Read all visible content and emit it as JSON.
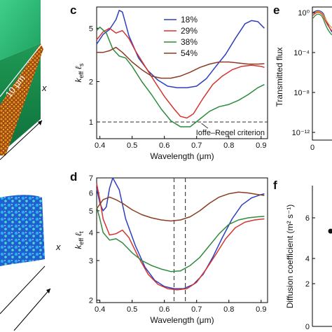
{
  "panels": {
    "c": "c",
    "d": "d",
    "e": "e",
    "f": "f"
  },
  "panel_a": {
    "scale_label": "10 μm",
    "axis_label": "x"
  },
  "panel_b": {
    "axis_label": "x"
  },
  "panel_e": {
    "ylabel": "Transmitted flux",
    "yticks": [
      "10⁰",
      "10⁻⁴",
      "10⁻⁸",
      "10⁻¹²"
    ],
    "xticks": [
      "0"
    ]
  },
  "panel_f": {
    "ylabel": "Diffusion coefficient (m² s⁻¹)",
    "yticks": [
      "0",
      "2",
      "4",
      "6"
    ]
  },
  "chart_data": [
    {
      "id": "c",
      "type": "line",
      "xlabel": "Wavelength (μm)",
      "ylabel_parts": [
        "k",
        "eff",
        "ℓ",
        "s"
      ],
      "yscale": "log",
      "xlim": [
        0.39,
        0.92
      ],
      "ylim": [
        0.75,
        7.2
      ],
      "xticks": [
        "0.4",
        "0.5",
        "0.6",
        "0.7",
        "0.8",
        "0.9"
      ],
      "xtick_values": [
        0.4,
        0.5,
        0.6,
        0.7,
        0.8,
        0.9
      ],
      "yticks": [
        "1",
        "2",
        "5"
      ],
      "ytick_values": [
        1,
        2,
        5
      ],
      "legend_position": "top-center",
      "reference_line": {
        "y": 1,
        "label": "Ioffe–Regel criterion"
      },
      "series": [
        {
          "name": "18%",
          "color": "#2b3fbf",
          "points": [
            [
              0.39,
              3.8
            ],
            [
              0.41,
              4.5
            ],
            [
              0.43,
              4.9
            ],
            [
              0.45,
              5.8
            ],
            [
              0.46,
              6.8
            ],
            [
              0.47,
              6.6
            ],
            [
              0.49,
              4.4
            ],
            [
              0.52,
              3.0
            ],
            [
              0.55,
              2.4
            ],
            [
              0.58,
              2.05
            ],
            [
              0.61,
              1.85
            ],
            [
              0.64,
              1.8
            ],
            [
              0.67,
              1.8
            ],
            [
              0.7,
              1.85
            ],
            [
              0.73,
              2.1
            ],
            [
              0.76,
              2.6
            ],
            [
              0.79,
              3.2
            ],
            [
              0.82,
              4.2
            ],
            [
              0.85,
              5.4
            ],
            [
              0.87,
              5.7
            ],
            [
              0.89,
              5.6
            ],
            [
              0.91,
              5.0
            ]
          ]
        },
        {
          "name": "29%",
          "color": "#d6332f",
          "points": [
            [
              0.39,
              4.1
            ],
            [
              0.41,
              4.7
            ],
            [
              0.43,
              5.0
            ],
            [
              0.45,
              4.6
            ],
            [
              0.47,
              4.8
            ],
            [
              0.49,
              4.2
            ],
            [
              0.51,
              3.4
            ],
            [
              0.54,
              2.6
            ],
            [
              0.57,
              2.0
            ],
            [
              0.6,
              1.55
            ],
            [
              0.63,
              1.25
            ],
            [
              0.65,
              1.1
            ],
            [
              0.67,
              1.07
            ],
            [
              0.69,
              1.15
            ],
            [
              0.72,
              1.5
            ],
            [
              0.75,
              1.9
            ],
            [
              0.78,
              2.2
            ],
            [
              0.81,
              2.45
            ],
            [
              0.84,
              2.6
            ],
            [
              0.87,
              2.65
            ],
            [
              0.9,
              2.6
            ],
            [
              0.91,
              2.55
            ]
          ]
        },
        {
          "name": "38%",
          "color": "#2e8b3d",
          "points": [
            [
              0.39,
              4.8
            ],
            [
              0.4,
              5.1
            ],
            [
              0.42,
              4.6
            ],
            [
              0.44,
              3.5
            ],
            [
              0.46,
              3.1
            ],
            [
              0.48,
              3.0
            ],
            [
              0.5,
              2.6
            ],
            [
              0.53,
              2.0
            ],
            [
              0.56,
              1.6
            ],
            [
              0.59,
              1.25
            ],
            [
              0.62,
              1.02
            ],
            [
              0.65,
              0.92
            ],
            [
              0.68,
              0.92
            ],
            [
              0.71,
              1.05
            ],
            [
              0.74,
              1.2
            ],
            [
              0.77,
              1.3
            ],
            [
              0.8,
              1.35
            ],
            [
              0.83,
              1.45
            ],
            [
              0.86,
              1.6
            ],
            [
              0.89,
              1.8
            ],
            [
              0.91,
              1.9
            ]
          ]
        },
        {
          "name": "54%",
          "color": "#8a3d22",
          "points": [
            [
              0.39,
              3.3
            ],
            [
              0.41,
              3.3
            ],
            [
              0.43,
              3.4
            ],
            [
              0.45,
              3.6
            ],
            [
              0.47,
              3.3
            ],
            [
              0.5,
              2.8
            ],
            [
              0.53,
              2.45
            ],
            [
              0.56,
              2.2
            ],
            [
              0.59,
              2.12
            ],
            [
              0.62,
              2.12
            ],
            [
              0.65,
              2.2
            ],
            [
              0.68,
              2.35
            ],
            [
              0.71,
              2.55
            ],
            [
              0.74,
              2.7
            ],
            [
              0.77,
              2.8
            ],
            [
              0.8,
              2.8
            ],
            [
              0.83,
              2.75
            ],
            [
              0.86,
              2.7
            ],
            [
              0.89,
              2.7
            ],
            [
              0.91,
              2.72
            ]
          ]
        }
      ]
    },
    {
      "id": "d",
      "type": "line",
      "xlabel": "Wavelength (μm)",
      "ylabel_parts": [
        "k",
        "eff",
        "ℓ",
        "t"
      ],
      "yscale": "log",
      "xlim": [
        0.39,
        0.92
      ],
      "ylim": [
        1.95,
        7.0
      ],
      "xticks": [
        "0.4",
        "0.5",
        "0.6",
        "0.7",
        "0.8",
        "0.9"
      ],
      "xtick_values": [
        0.4,
        0.5,
        0.6,
        0.7,
        0.8,
        0.9
      ],
      "yticks": [
        "2",
        "3",
        "4",
        "5",
        "6",
        "7"
      ],
      "ytick_values": [
        2,
        3,
        4,
        5,
        6,
        7
      ],
      "vlines": [
        0.63,
        0.665
      ],
      "series": [
        {
          "name": "18%",
          "color": "#2b3fbf",
          "points": [
            [
              0.39,
              6.3
            ],
            [
              0.4,
              5.4
            ],
            [
              0.41,
              5.0
            ],
            [
              0.42,
              5.2
            ],
            [
              0.43,
              6.3
            ],
            [
              0.44,
              7.0
            ],
            [
              0.46,
              6.2
            ],
            [
              0.48,
              4.6
            ],
            [
              0.51,
              3.5
            ],
            [
              0.54,
              2.8
            ],
            [
              0.57,
              2.45
            ],
            [
              0.6,
              2.3
            ],
            [
              0.63,
              2.25
            ],
            [
              0.66,
              2.25
            ],
            [
              0.69,
              2.35
            ],
            [
              0.72,
              2.6
            ],
            [
              0.75,
              3.1
            ],
            [
              0.78,
              3.8
            ],
            [
              0.81,
              4.6
            ],
            [
              0.84,
              5.3
            ],
            [
              0.87,
              5.7
            ],
            [
              0.9,
              5.9
            ],
            [
              0.91,
              5.95
            ]
          ]
        },
        {
          "name": "29%",
          "color": "#d6332f",
          "points": [
            [
              0.39,
              6.6
            ],
            [
              0.4,
              5.6
            ],
            [
              0.41,
              4.6
            ],
            [
              0.43,
              3.9
            ],
            [
              0.45,
              3.95
            ],
            [
              0.47,
              4.1
            ],
            [
              0.49,
              3.8
            ],
            [
              0.52,
              3.1
            ],
            [
              0.55,
              2.6
            ],
            [
              0.58,
              2.35
            ],
            [
              0.61,
              2.25
            ],
            [
              0.64,
              2.22
            ],
            [
              0.67,
              2.25
            ],
            [
              0.7,
              2.4
            ],
            [
              0.73,
              2.75
            ],
            [
              0.76,
              3.2
            ],
            [
              0.79,
              3.75
            ],
            [
              0.82,
              4.2
            ],
            [
              0.85,
              4.45
            ],
            [
              0.88,
              4.55
            ],
            [
              0.91,
              4.6
            ]
          ]
        },
        {
          "name": "38%",
          "color": "#2e8b3d",
          "points": [
            [
              0.39,
              5.2
            ],
            [
              0.4,
              4.6
            ],
            [
              0.41,
              4.0
            ],
            [
              0.43,
              3.7
            ],
            [
              0.45,
              3.75
            ],
            [
              0.47,
              3.6
            ],
            [
              0.5,
              3.25
            ],
            [
              0.53,
              3.0
            ],
            [
              0.56,
              2.85
            ],
            [
              0.59,
              2.75
            ],
            [
              0.62,
              2.68
            ],
            [
              0.65,
              2.7
            ],
            [
              0.68,
              2.85
            ],
            [
              0.71,
              3.1
            ],
            [
              0.74,
              3.5
            ],
            [
              0.77,
              3.95
            ],
            [
              0.8,
              4.35
            ],
            [
              0.83,
              4.55
            ],
            [
              0.86,
              4.65
            ],
            [
              0.89,
              4.7
            ],
            [
              0.91,
              4.72
            ]
          ]
        },
        {
          "name": "54%",
          "color": "#8a3d22",
          "points": [
            [
              0.39,
              5.1
            ],
            [
              0.41,
              5.6
            ],
            [
              0.43,
              5.75
            ],
            [
              0.45,
              5.6
            ],
            [
              0.47,
              5.4
            ],
            [
              0.5,
              5.05
            ],
            [
              0.53,
              4.8
            ],
            [
              0.56,
              4.65
            ],
            [
              0.59,
              4.55
            ],
            [
              0.62,
              4.5
            ],
            [
              0.65,
              4.55
            ],
            [
              0.68,
              4.7
            ],
            [
              0.71,
              5.0
            ],
            [
              0.74,
              5.4
            ],
            [
              0.77,
              5.75
            ],
            [
              0.8,
              5.95
            ],
            [
              0.83,
              6.05
            ],
            [
              0.86,
              6.0
            ],
            [
              0.89,
              5.9
            ],
            [
              0.91,
              5.85
            ]
          ]
        }
      ]
    }
  ]
}
